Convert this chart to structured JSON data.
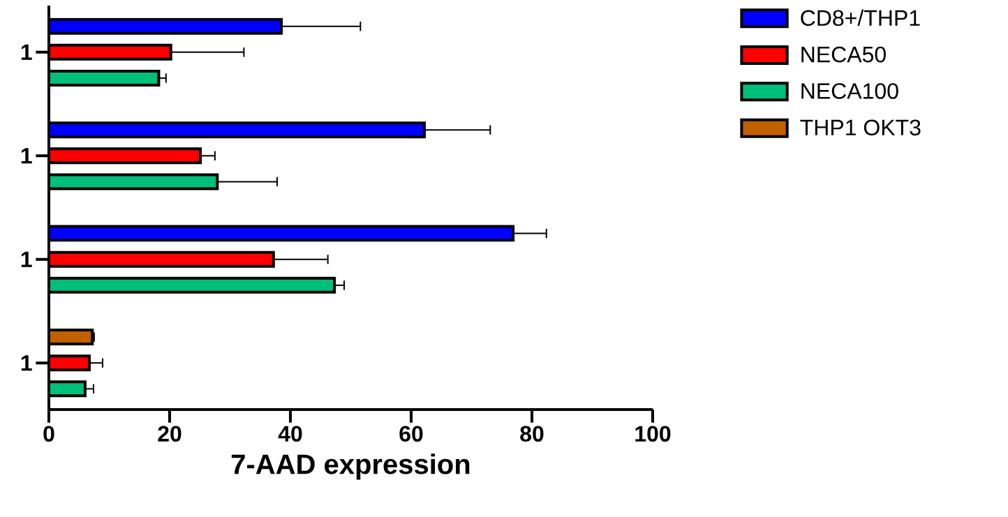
{
  "chart_data": {
    "type": "bar",
    "orientation": "horizontal",
    "xlabel": "7-AAD expression",
    "categories": [
      "1",
      "1",
      "1",
      "1"
    ],
    "series": [
      {
        "name": "CD8+/THP1",
        "color": "#0000ff",
        "values": [
          38.5,
          62.2,
          76.9,
          null
        ],
        "errors": [
          [
            38.5,
            51.6
          ],
          [
            62.2,
            73.1
          ],
          [
            76.9,
            82.4
          ],
          null
        ]
      },
      {
        "name": "NECA50",
        "color": "#ff0000",
        "values": [
          20.2,
          25.1,
          37.2,
          6.7
        ],
        "errors": [
          [
            20.2,
            32.3
          ],
          [
            25.1,
            27.5
          ],
          [
            37.2,
            46.2
          ],
          [
            6.7,
            8.9
          ]
        ]
      },
      {
        "name": "NECA100",
        "color": "#00bf7a",
        "values": [
          18.2,
          27.9,
          47.3,
          6.0
        ],
        "errors": [
          [
            18.2,
            19.4
          ],
          [
            27.9,
            37.8
          ],
          [
            47.3,
            48.9
          ],
          [
            6.0,
            7.4
          ]
        ]
      },
      {
        "name": "THP1 OKT3",
        "color": "#c06000",
        "values": [
          null,
          null,
          null,
          7.2
        ],
        "errors": [
          null,
          null,
          null,
          [
            7.2,
            7.5
          ]
        ]
      }
    ],
    "xlim": [
      0,
      100
    ],
    "xticks": [
      0,
      20,
      40,
      60,
      80,
      100
    ],
    "legend": "top right"
  }
}
